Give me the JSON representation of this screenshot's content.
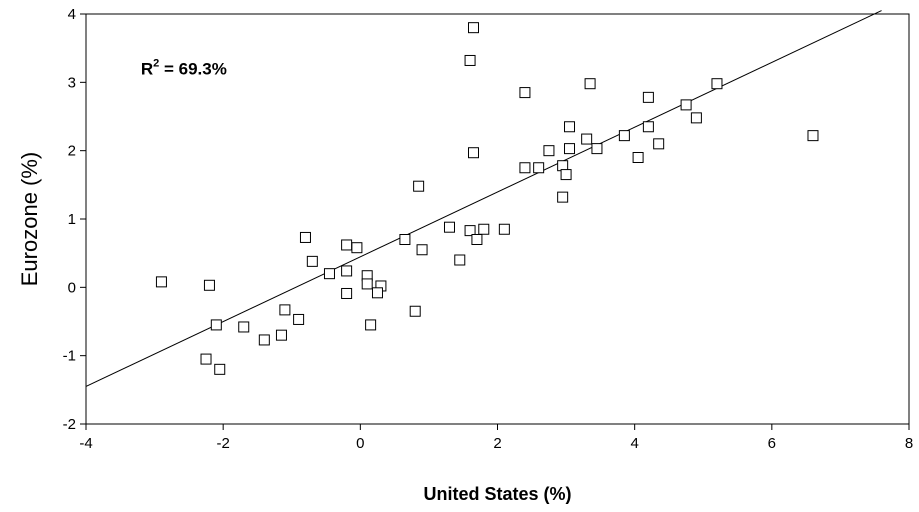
{
  "chart_data": {
    "type": "scatter",
    "title": "",
    "xlabel": "United States (%)",
    "ylabel": "Eurozone (%)",
    "xlim": [
      -4,
      8
    ],
    "ylim": [
      -2,
      4
    ],
    "xticks": [
      -4,
      -2,
      0,
      2,
      4,
      6,
      8
    ],
    "yticks": [
      -2,
      -1,
      0,
      1,
      2,
      3,
      4
    ],
    "grid": false,
    "legend": "none",
    "annotation": {
      "base": "R",
      "sup": "2",
      "rest": " = 69.3%",
      "x": -3.2,
      "y": 3.2
    },
    "fit_line": {
      "x": [
        -4,
        7.6
      ],
      "y": [
        -1.45,
        4.05
      ]
    },
    "points": [
      {
        "x": -2.9,
        "y": 0.08
      },
      {
        "x": -2.2,
        "y": 0.03
      },
      {
        "x": -2.1,
        "y": -0.55
      },
      {
        "x": -2.25,
        "y": -1.05
      },
      {
        "x": -2.05,
        "y": -1.2
      },
      {
        "x": -1.7,
        "y": -0.58
      },
      {
        "x": -1.4,
        "y": -0.77
      },
      {
        "x": -1.15,
        "y": -0.7
      },
      {
        "x": -1.1,
        "y": -0.33
      },
      {
        "x": -0.9,
        "y": -0.47
      },
      {
        "x": -0.8,
        "y": 0.73
      },
      {
        "x": -0.7,
        "y": 0.38
      },
      {
        "x": -0.45,
        "y": 0.2
      },
      {
        "x": -0.2,
        "y": 0.62
      },
      {
        "x": -0.2,
        "y": 0.24
      },
      {
        "x": -0.2,
        "y": -0.09
      },
      {
        "x": -0.05,
        "y": 0.58
      },
      {
        "x": 0.1,
        "y": 0.17
      },
      {
        "x": 0.1,
        "y": 0.05
      },
      {
        "x": 0.15,
        "y": -0.55
      },
      {
        "x": 0.3,
        "y": 0.02
      },
      {
        "x": 0.25,
        "y": -0.08
      },
      {
        "x": 0.65,
        "y": 0.7
      },
      {
        "x": 0.8,
        "y": -0.35
      },
      {
        "x": 0.85,
        "y": 1.48
      },
      {
        "x": 0.9,
        "y": 0.55
      },
      {
        "x": 1.3,
        "y": 0.88
      },
      {
        "x": 1.45,
        "y": 0.4
      },
      {
        "x": 1.6,
        "y": 0.83
      },
      {
        "x": 1.6,
        "y": 3.32
      },
      {
        "x": 1.65,
        "y": 3.8
      },
      {
        "x": 1.65,
        "y": 1.97
      },
      {
        "x": 1.7,
        "y": 0.7
      },
      {
        "x": 1.8,
        "y": 0.85
      },
      {
        "x": 2.1,
        "y": 0.85
      },
      {
        "x": 2.4,
        "y": 2.85
      },
      {
        "x": 2.4,
        "y": 1.75
      },
      {
        "x": 2.6,
        "y": 1.75
      },
      {
        "x": 2.75,
        "y": 2.0
      },
      {
        "x": 2.95,
        "y": 1.78
      },
      {
        "x": 2.95,
        "y": 1.32
      },
      {
        "x": 3.0,
        "y": 1.65
      },
      {
        "x": 3.05,
        "y": 2.35
      },
      {
        "x": 3.05,
        "y": 2.03
      },
      {
        "x": 3.35,
        "y": 2.98
      },
      {
        "x": 3.3,
        "y": 2.17
      },
      {
        "x": 3.45,
        "y": 2.03
      },
      {
        "x": 3.85,
        "y": 2.22
      },
      {
        "x": 4.05,
        "y": 1.9
      },
      {
        "x": 4.2,
        "y": 2.78
      },
      {
        "x": 4.2,
        "y": 2.35
      },
      {
        "x": 4.35,
        "y": 2.1
      },
      {
        "x": 4.75,
        "y": 2.67
      },
      {
        "x": 4.9,
        "y": 2.48
      },
      {
        "x": 5.2,
        "y": 2.98
      },
      {
        "x": 6.6,
        "y": 2.22
      }
    ]
  }
}
